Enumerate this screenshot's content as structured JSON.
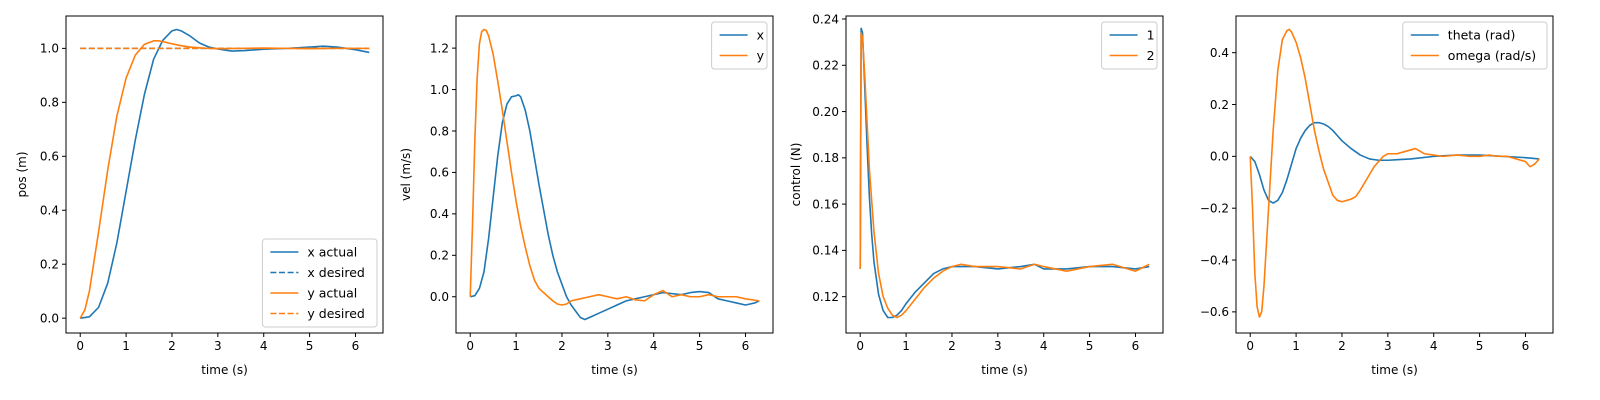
{
  "chart_data": [
    {
      "type": "line",
      "xlabel": "time (s)",
      "ylabel": "pos (m)",
      "xlim": [
        -0.31,
        6.6
      ],
      "ylim": [
        -0.055,
        1.12
      ],
      "xticks": [
        0,
        1,
        2,
        3,
        4,
        5,
        6
      ],
      "yticks": [
        0.0,
        0.2,
        0.4,
        0.6,
        0.8,
        1.0
      ],
      "ytick_labels": [
        "0.0",
        "0.2",
        "0.4",
        "0.6",
        "0.8",
        "1.0"
      ],
      "legend": "lower-right",
      "series": [
        {
          "name": "x actual",
          "color": "#1f77b4",
          "dash": false,
          "x": [
            0,
            0.2,
            0.4,
            0.6,
            0.8,
            1.0,
            1.2,
            1.4,
            1.6,
            1.8,
            2.0,
            2.1,
            2.2,
            2.4,
            2.6,
            2.8,
            3.0,
            3.3,
            3.6,
            4.0,
            4.5,
            5.0,
            5.3,
            5.6,
            6.0,
            6.3
          ],
          "y": [
            0,
            0.005,
            0.04,
            0.13,
            0.28,
            0.47,
            0.66,
            0.83,
            0.96,
            1.03,
            1.065,
            1.07,
            1.065,
            1.045,
            1.02,
            1.005,
            0.998,
            0.99,
            0.992,
            0.997,
            1.0,
            1.005,
            1.008,
            1.005,
            0.995,
            0.985
          ]
        },
        {
          "name": "x desired",
          "color": "#1f77b4",
          "dash": true,
          "x": [
            0,
            6.3
          ],
          "y": [
            1.0,
            1.0
          ]
        },
        {
          "name": "y actual",
          "color": "#ff7f0e",
          "dash": false,
          "x": [
            0,
            0.1,
            0.2,
            0.4,
            0.6,
            0.8,
            1.0,
            1.2,
            1.4,
            1.6,
            1.7,
            1.8,
            2.0,
            2.2,
            2.4,
            2.6,
            2.8,
            3.0,
            3.5,
            4.0,
            4.5,
            5.0,
            5.5,
            6.0,
            6.3
          ],
          "y": [
            0,
            0.03,
            0.1,
            0.32,
            0.55,
            0.75,
            0.89,
            0.975,
            1.015,
            1.028,
            1.028,
            1.025,
            1.017,
            1.01,
            1.005,
            1.002,
            1.0,
            0.999,
            1.0,
            1.001,
            1.0,
            0.999,
            1.0,
            1.0,
            1.0
          ]
        },
        {
          "name": "y desired",
          "color": "#ff7f0e",
          "dash": true,
          "x": [
            0,
            6.3
          ],
          "y": [
            1.0,
            1.0
          ]
        }
      ]
    },
    {
      "type": "line",
      "xlabel": "time (s)",
      "ylabel": "vel (m/s)",
      "xlim": [
        -0.31,
        6.6
      ],
      "ylim": [
        -0.175,
        1.355
      ],
      "xticks": [
        0,
        1,
        2,
        3,
        4,
        5,
        6
      ],
      "yticks": [
        0.0,
        0.2,
        0.4,
        0.6,
        0.8,
        1.0,
        1.2
      ],
      "ytick_labels": [
        "0.0",
        "0.2",
        "0.4",
        "0.6",
        "0.8",
        "1.0",
        "1.2"
      ],
      "legend": "top-right",
      "series": [
        {
          "name": "x",
          "color": "#1f77b4",
          "dash": false,
          "x": [
            0,
            0.1,
            0.2,
            0.3,
            0.4,
            0.5,
            0.6,
            0.7,
            0.8,
            0.9,
            1.0,
            1.05,
            1.1,
            1.2,
            1.3,
            1.4,
            1.5,
            1.6,
            1.7,
            1.8,
            1.9,
            2.0,
            2.1,
            2.2,
            2.3,
            2.4,
            2.5,
            2.6,
            2.8,
            3.0,
            3.2,
            3.4,
            3.6,
            3.8,
            4.0,
            4.2,
            4.4,
            4.6,
            4.8,
            5.0,
            5.2,
            5.4,
            5.6,
            5.8,
            6.0,
            6.1,
            6.2,
            6.3
          ],
          "y": [
            0,
            0.005,
            0.04,
            0.12,
            0.28,
            0.48,
            0.68,
            0.84,
            0.93,
            0.965,
            0.97,
            0.975,
            0.965,
            0.9,
            0.8,
            0.67,
            0.54,
            0.42,
            0.3,
            0.2,
            0.12,
            0.06,
            0.0,
            -0.04,
            -0.07,
            -0.1,
            -0.11,
            -0.1,
            -0.08,
            -0.06,
            -0.04,
            -0.02,
            -0.01,
            0.0,
            0.01,
            0.02,
            0.015,
            0.01,
            0.02,
            0.025,
            0.02,
            -0.01,
            -0.02,
            -0.03,
            -0.04,
            -0.035,
            -0.03,
            -0.02
          ]
        },
        {
          "name": "y",
          "color": "#ff7f0e",
          "dash": false,
          "x": [
            0,
            0.05,
            0.1,
            0.15,
            0.2,
            0.25,
            0.3,
            0.35,
            0.4,
            0.5,
            0.6,
            0.7,
            0.8,
            0.9,
            1.0,
            1.1,
            1.2,
            1.3,
            1.4,
            1.5,
            1.6,
            1.7,
            1.8,
            1.9,
            2.0,
            2.1,
            2.2,
            2.4,
            2.6,
            2.8,
            3.0,
            3.2,
            3.4,
            3.6,
            3.8,
            4.0,
            4.2,
            4.4,
            4.6,
            4.8,
            5.0,
            5.2,
            5.4,
            5.6,
            5.8,
            6.0,
            6.3
          ],
          "y": [
            0,
            0.35,
            0.75,
            1.05,
            1.22,
            1.28,
            1.29,
            1.285,
            1.26,
            1.17,
            1.04,
            0.9,
            0.75,
            0.6,
            0.46,
            0.34,
            0.24,
            0.15,
            0.08,
            0.04,
            0.02,
            0.0,
            -0.02,
            -0.035,
            -0.04,
            -0.035,
            -0.02,
            -0.01,
            0.0,
            0.01,
            0.0,
            -0.01,
            0.0,
            -0.015,
            -0.02,
            0.01,
            0.03,
            0.0,
            0.01,
            0.0,
            0.0,
            0.01,
            0.0,
            0.0,
            0.0,
            -0.01,
            -0.02
          ]
        }
      ]
    },
    {
      "type": "line",
      "xlabel": "time (s)",
      "ylabel": "control (N)",
      "xlim": [
        -0.31,
        6.6
      ],
      "ylim": [
        0.1043,
        0.2413
      ],
      "xticks": [
        0,
        1,
        2,
        3,
        4,
        5,
        6
      ],
      "yticks": [
        0.12,
        0.14,
        0.16,
        0.18,
        0.2,
        0.22,
        0.24
      ],
      "ytick_labels": [
        "0.12",
        "0.14",
        "0.16",
        "0.18",
        "0.20",
        "0.22",
        "0.24"
      ],
      "legend": "top-right",
      "series": [
        {
          "name": "1",
          "color": "#1f77b4",
          "dash": false,
          "x": [
            0,
            0.02,
            0.05,
            0.1,
            0.15,
            0.2,
            0.25,
            0.3,
            0.4,
            0.5,
            0.6,
            0.7,
            0.8,
            0.9,
            1.0,
            1.2,
            1.4,
            1.6,
            1.8,
            2.0,
            2.2,
            2.5,
            3.0,
            3.5,
            3.8,
            4.0,
            4.5,
            5.0,
            5.5,
            6.0,
            6.3
          ],
          "y": [
            0.132,
            0.236,
            0.234,
            0.21,
            0.185,
            0.163,
            0.147,
            0.135,
            0.121,
            0.114,
            0.111,
            0.111,
            0.112,
            0.114,
            0.117,
            0.122,
            0.126,
            0.13,
            0.132,
            0.133,
            0.133,
            0.133,
            0.132,
            0.133,
            0.134,
            0.132,
            0.132,
            0.133,
            0.133,
            0.132,
            0.133
          ]
        },
        {
          "name": "2",
          "color": "#ff7f0e",
          "dash": false,
          "x": [
            0,
            0.02,
            0.05,
            0.1,
            0.15,
            0.2,
            0.3,
            0.4,
            0.5,
            0.6,
            0.7,
            0.8,
            0.9,
            1.0,
            1.2,
            1.4,
            1.6,
            1.8,
            2.0,
            2.2,
            2.5,
            3.0,
            3.5,
            3.8,
            4.0,
            4.5,
            5.0,
            5.5,
            6.0,
            6.3
          ],
          "y": [
            0.132,
            0.234,
            0.232,
            0.215,
            0.195,
            0.175,
            0.148,
            0.13,
            0.12,
            0.115,
            0.112,
            0.111,
            0.112,
            0.114,
            0.119,
            0.124,
            0.128,
            0.131,
            0.133,
            0.134,
            0.133,
            0.133,
            0.132,
            0.134,
            0.133,
            0.131,
            0.133,
            0.134,
            0.131,
            0.134
          ]
        }
      ]
    },
    {
      "type": "line",
      "xlabel": "time (s)",
      "ylabel": "",
      "xlim": [
        -0.31,
        6.6
      ],
      "ylim": [
        -0.6815,
        0.5415
      ],
      "xticks": [
        0,
        1,
        2,
        3,
        4,
        5,
        6
      ],
      "yticks": [
        -0.6,
        -0.4,
        -0.2,
        0.0,
        0.2,
        0.4
      ],
      "ytick_labels": [
        "−0.6",
        "−0.4",
        "−0.2",
        "0.0",
        "0.2",
        "0.4"
      ],
      "legend": "top-right",
      "series": [
        {
          "name": "theta (rad)",
          "color": "#1f77b4",
          "dash": false,
          "x": [
            0,
            0.1,
            0.2,
            0.3,
            0.4,
            0.5,
            0.6,
            0.7,
            0.8,
            0.9,
            1.0,
            1.1,
            1.2,
            1.3,
            1.4,
            1.5,
            1.6,
            1.7,
            1.8,
            1.9,
            2.0,
            2.2,
            2.4,
            2.6,
            2.8,
            3.0,
            3.5,
            4.0,
            4.5,
            5.0,
            5.5,
            6.0,
            6.3
          ],
          "y": [
            0,
            -0.02,
            -0.07,
            -0.13,
            -0.17,
            -0.18,
            -0.17,
            -0.14,
            -0.09,
            -0.03,
            0.03,
            0.07,
            0.1,
            0.12,
            0.13,
            0.13,
            0.125,
            0.115,
            0.1,
            0.08,
            0.06,
            0.03,
            0.005,
            -0.01,
            -0.015,
            -0.015,
            -0.01,
            0.0,
            0.005,
            0.005,
            0.0,
            -0.005,
            -0.01
          ]
        },
        {
          "name": "omega (rad/s)",
          "color": "#ff7f0e",
          "dash": false,
          "x": [
            0,
            0.05,
            0.1,
            0.15,
            0.2,
            0.25,
            0.3,
            0.4,
            0.5,
            0.6,
            0.7,
            0.8,
            0.85,
            0.9,
            1.0,
            1.1,
            1.2,
            1.3,
            1.4,
            1.5,
            1.6,
            1.7,
            1.8,
            1.9,
            2.0,
            2.1,
            2.2,
            2.3,
            2.4,
            2.5,
            2.6,
            2.7,
            2.8,
            2.9,
            3.0,
            3.2,
            3.4,
            3.6,
            3.8,
            4.0,
            4.2,
            4.5,
            4.8,
            5.0,
            5.2,
            5.4,
            5.6,
            5.8,
            6.0,
            6.1,
            6.2,
            6.3
          ],
          "y": [
            0,
            -0.2,
            -0.45,
            -0.58,
            -0.62,
            -0.6,
            -0.5,
            -0.2,
            0.1,
            0.33,
            0.45,
            0.485,
            0.49,
            0.48,
            0.44,
            0.38,
            0.3,
            0.2,
            0.1,
            0.02,
            -0.05,
            -0.1,
            -0.15,
            -0.17,
            -0.175,
            -0.17,
            -0.165,
            -0.155,
            -0.13,
            -0.1,
            -0.07,
            -0.04,
            -0.02,
            0.0,
            0.01,
            0.01,
            0.02,
            0.03,
            0.01,
            0.005,
            0.0,
            0.005,
            0.0,
            0.0,
            0.005,
            0.0,
            0.0,
            -0.01,
            -0.02,
            -0.04,
            -0.03,
            -0.01
          ]
        }
      ]
    }
  ]
}
